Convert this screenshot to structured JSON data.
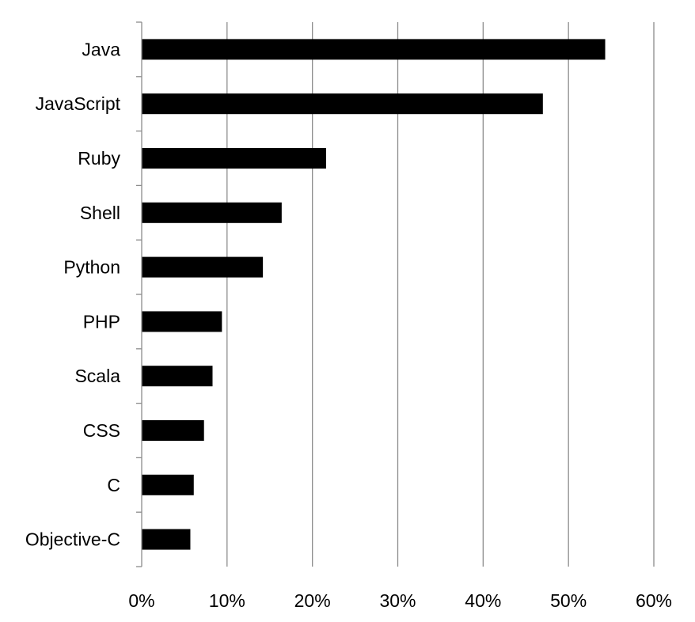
{
  "chart_data": {
    "type": "bar",
    "orientation": "horizontal",
    "categories": [
      "Java",
      "JavaScript",
      "Ruby",
      "Shell",
      "Python",
      "PHP",
      "Scala",
      "CSS",
      "C",
      "Objective-C"
    ],
    "values": [
      54.3,
      47.0,
      21.6,
      16.4,
      14.2,
      9.4,
      8.3,
      7.3,
      6.1,
      5.7
    ],
    "title": "",
    "xlabel": "",
    "ylabel": "",
    "xlim": [
      0,
      60
    ],
    "xticks": [
      0,
      10,
      20,
      30,
      40,
      50,
      60
    ],
    "xtick_labels": [
      "0%",
      "10%",
      "20%",
      "30%",
      "40%",
      "50%",
      "60%"
    ],
    "grid": "vertical",
    "legend": "none",
    "bar_color": "#000000",
    "grid_color": "#8c8c8c"
  }
}
